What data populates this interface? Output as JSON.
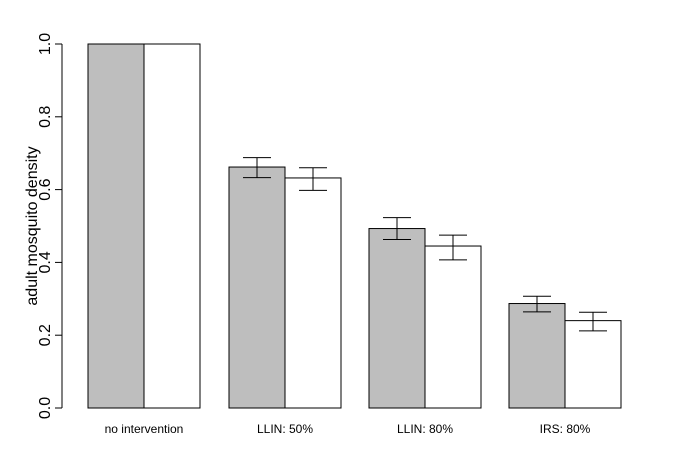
{
  "chart_data": {
    "type": "bar",
    "title": "",
    "xlabel": "",
    "ylabel": "adult mosquito density",
    "ylim": [
      0,
      1
    ],
    "yticks": [
      "0.0",
      "0.2",
      "0.4",
      "0.6",
      "0.8",
      "1.0"
    ],
    "categories": [
      "no intervention",
      "LLIN: 50%",
      "LLIN: 80%",
      "IRS: 80%"
    ],
    "grid": false,
    "legend": "none",
    "series": [
      {
        "color": "#bebebe",
        "values": [
          1.0,
          0.662,
          0.493,
          0.287
        ],
        "error_low": [
          null,
          0.633,
          0.463,
          0.264
        ],
        "error_high": [
          null,
          0.688,
          0.523,
          0.307
        ]
      },
      {
        "color": "#ffffff",
        "values": [
          1.0,
          0.632,
          0.445,
          0.24
        ],
        "error_low": [
          null,
          0.598,
          0.407,
          0.212
        ],
        "error_high": [
          null,
          0.66,
          0.475,
          0.263
        ]
      }
    ]
  }
}
